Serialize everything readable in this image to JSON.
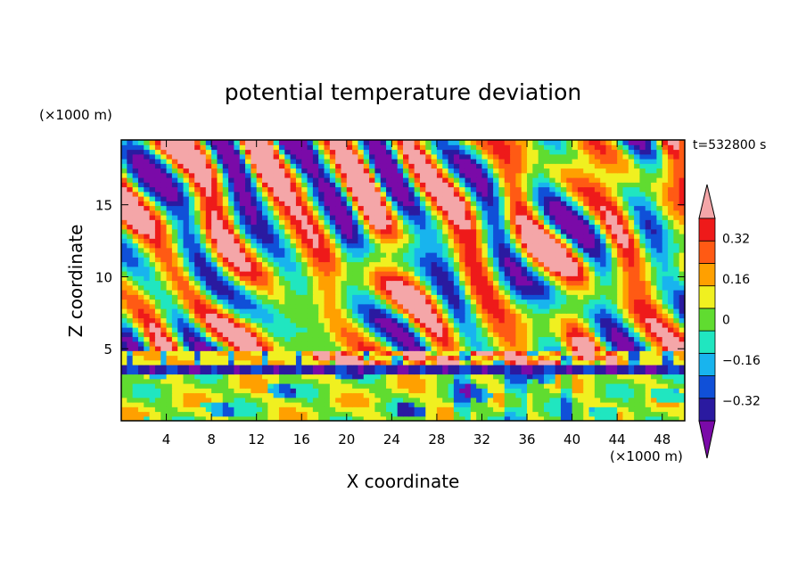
{
  "chart_data": {
    "type": "heatmap",
    "title": "potential temperature deviation",
    "xlabel": "X coordinate",
    "ylabel": "Z coordinate",
    "x_unit": "(×1000 m)",
    "y_unit": "(×1000 m)",
    "time_label": "t=532800 s",
    "xlim": [
      0,
      50
    ],
    "ylim": [
      0,
      19.5
    ],
    "x_ticks": [
      4,
      8,
      12,
      16,
      20,
      24,
      28,
      32,
      36,
      40,
      44,
      48
    ],
    "y_ticks": [
      5,
      10,
      15
    ],
    "colorbar": {
      "levels": [
        -0.4,
        -0.32,
        -0.24,
        -0.16,
        -0.08,
        0,
        0.08,
        0.16,
        0.24,
        0.32,
        0.4
      ],
      "labels": [
        {
          "value": 0.32,
          "text": "0.32"
        },
        {
          "value": 0.16,
          "text": "0.16"
        },
        {
          "value": 0,
          "text": "0"
        },
        {
          "value": -0.16,
          "text": "−0.16"
        },
        {
          "value": -0.32,
          "text": "−0.32"
        }
      ],
      "colors": [
        "#7a0aa8",
        "#2a1aa0",
        "#1050d8",
        "#18b4ee",
        "#20e6c0",
        "#60dc30",
        "#f0f020",
        "#ffa000",
        "#ff5a14",
        "#ee1a1a",
        "#f4a6a8"
      ],
      "extend": "both"
    },
    "field_description_layers": [
      {
        "z_range": [
          0,
          3.5
        ],
        "character": "mostly green/cyan/yellow near zero with blue plumes"
      },
      {
        "z_range": [
          3.5,
          5
        ],
        "character": "thin layer: purple below, pink above (strong deviation)"
      },
      {
        "z_range": [
          5,
          19.5
        ],
        "character": "banded wavy structures alternating purple and red/pink"
      }
    ],
    "grid": false
  }
}
